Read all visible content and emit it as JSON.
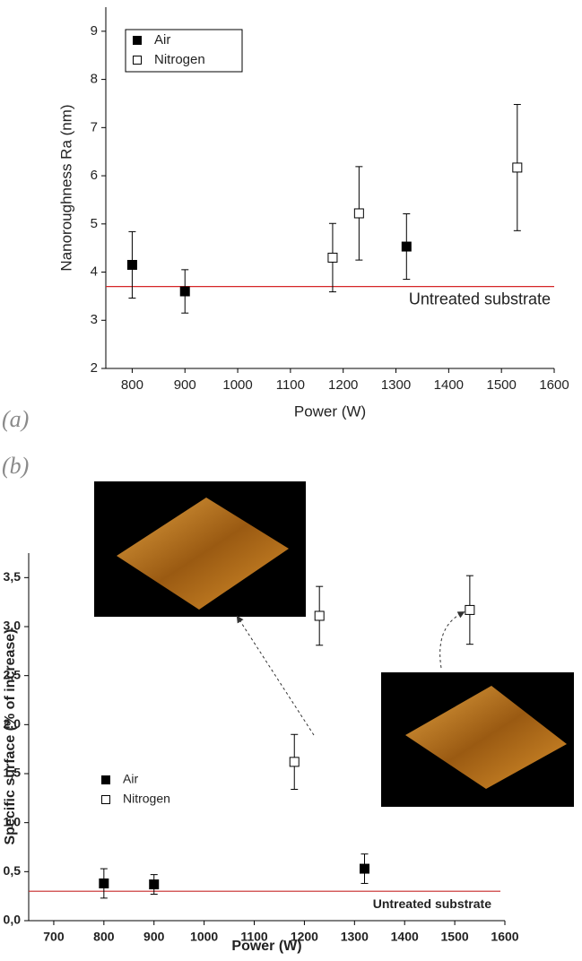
{
  "chart_data": [
    {
      "type": "scatter",
      "panel_label": "(a)",
      "x_label": "Power (W)",
      "y_label": "Nanoroughness Ra (nm)",
      "xlim": [
        750,
        1600
      ],
      "xticks": [
        800,
        900,
        1000,
        1100,
        1200,
        1300,
        1400,
        1500,
        1600
      ],
      "ylim": [
        2,
        9.5
      ],
      "yticks": [
        2,
        3,
        4,
        5,
        6,
        7,
        8,
        9
      ],
      "series": [
        {
          "name": "Air",
          "color": "#000000",
          "marker": "filled",
          "x": [
            800,
            900,
            1320
          ],
          "values": [
            4.15,
            3.6,
            4.53
          ],
          "errors": [
            0.69,
            0.45,
            0.68
          ]
        },
        {
          "name": "Nitrogen",
          "color": "#000000",
          "marker": "open",
          "x": [
            1180,
            1230,
            1530
          ],
          "values": [
            4.3,
            5.22,
            6.17
          ],
          "errors": [
            0.71,
            0.97,
            1.31
          ]
        }
      ],
      "reference_line": {
        "value": 3.7,
        "label": "Untreated substrate",
        "color": "#d62728"
      }
    },
    {
      "type": "scatter",
      "panel_label": "(b)",
      "x_label": "Power (W)",
      "y_label": "Specific surface (% of increase)",
      "xlim": [
        650,
        1600
      ],
      "xticks": [
        700,
        800,
        900,
        1000,
        1100,
        1200,
        1300,
        1400,
        1500,
        1600
      ],
      "ylim": [
        0,
        3.75
      ],
      "yticks": [
        {
          "value": 0,
          "label": "0,0"
        },
        {
          "value": 0.5,
          "label": "0,5"
        },
        {
          "value": 1,
          "label": "1,0"
        },
        {
          "value": 1.5,
          "label": "1,5"
        },
        {
          "value": 2,
          "label": "2,0"
        },
        {
          "value": 2.5,
          "label": "2,5"
        },
        {
          "value": 3,
          "label": "3,0"
        },
        {
          "value": 3.5,
          "label": "3,5"
        }
      ],
      "series": [
        {
          "name": "Air",
          "color": "#000000",
          "marker": "filled",
          "x": [
            800,
            900,
            1320
          ],
          "values": [
            0.38,
            0.37,
            0.53
          ],
          "errors": [
            0.15,
            0.1,
            0.15
          ]
        },
        {
          "name": "Nitrogen",
          "color": "#000000",
          "marker": "open",
          "x": [
            1180,
            1230,
            1530
          ],
          "values": [
            1.62,
            3.11,
            3.17
          ],
          "errors": [
            0.28,
            0.3,
            0.35
          ]
        }
      ],
      "reference_line": {
        "value": 0.3,
        "label": "Untreated substrate",
        "color": "#c62828"
      }
    }
  ]
}
